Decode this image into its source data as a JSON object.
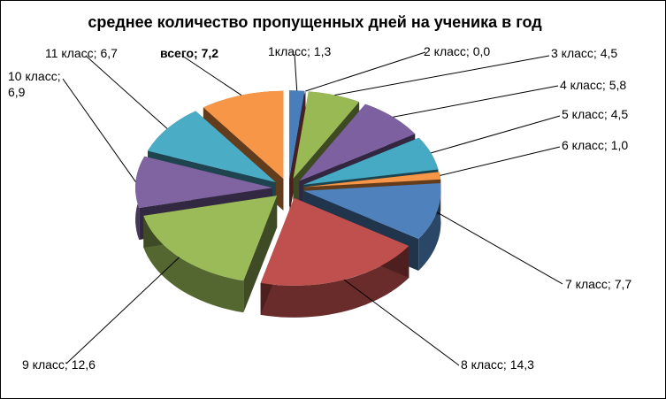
{
  "chart_data": {
    "type": "pie",
    "title": "среднее количество пропущенных дней на ученика в год",
    "style": "3d-exploded",
    "categories": [
      "1класс",
      "2 класс",
      "3 класс",
      "4 класс",
      "5 класс",
      "6 класс",
      "7 класс",
      "8 класс",
      "9 класс",
      "10 класс",
      "11 класс",
      "всего"
    ],
    "values": [
      1.3,
      0.0,
      4.5,
      5.8,
      4.5,
      1.0,
      7.7,
      14.3,
      12.6,
      6.9,
      6.7,
      7.2
    ],
    "labels": [
      {
        "lines": [
          "1класс; 1,3"
        ],
        "bold": false
      },
      {
        "lines": [
          "2 класс; 0,0"
        ],
        "bold": false
      },
      {
        "lines": [
          "3 класс; 4,5"
        ],
        "bold": false
      },
      {
        "lines": [
          "4 класс; 5,8"
        ],
        "bold": false
      },
      {
        "lines": [
          "5 класс; 4,5"
        ],
        "bold": false
      },
      {
        "lines": [
          "6 класс; 1,0"
        ],
        "bold": false
      },
      {
        "lines": [
          "7 класс; 7,7"
        ],
        "bold": false
      },
      {
        "lines": [
          "8 класс; 14,3"
        ],
        "bold": false
      },
      {
        "lines": [
          "9 класс; 12,6"
        ],
        "bold": false
      },
      {
        "lines": [
          "10 класс;",
          "6,9"
        ],
        "bold": false
      },
      {
        "lines": [
          "11 класс; 6,7"
        ],
        "bold": false
      },
      {
        "lines": [
          "всего; 7,2"
        ],
        "bold": true
      }
    ],
    "colors": [
      "#4a7ebb",
      "#be4b48",
      "#98b954",
      "#7d60a0",
      "#46aac5",
      "#f79646",
      "#4f81bd",
      "#c0504d",
      "#9bbb59",
      "#8064a2",
      "#4bacc6",
      "#f79646"
    ],
    "legend": "none"
  }
}
